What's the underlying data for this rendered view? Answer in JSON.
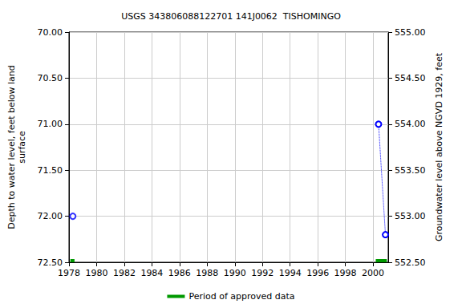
{
  "chart_data": {
    "type": "scatter",
    "title": "USGS 343806088122701 141J0062  TISHOMINGO",
    "ylabel": "Depth to water level, feet below land\nsurface",
    "y2label": "Groundwater level above NGVD 1929, feet",
    "xlim": [
      1978,
      2001.1
    ],
    "xticks": [
      1978,
      1980,
      1982,
      1984,
      1986,
      1988,
      1990,
      1992,
      1994,
      1996,
      1998,
      2000
    ],
    "ylim": [
      70,
      72.5
    ],
    "yticks": [
      {
        "value": 70,
        "label": "70.00"
      },
      {
        "value": 70.5,
        "label": "70.50"
      },
      {
        "value": 71,
        "label": "71.00"
      },
      {
        "value": 71.5,
        "label": "71.50"
      },
      {
        "value": 72,
        "label": "72.00"
      },
      {
        "value": 72.5,
        "label": "72.50"
      }
    ],
    "y2lim": [
      552.5,
      555
    ],
    "y2ticks": [
      {
        "value": 552.5,
        "label": "552.50"
      },
      {
        "value": 553,
        "label": "553.00"
      },
      {
        "value": 553.5,
        "label": "553.50"
      },
      {
        "value": 554,
        "label": "554.00"
      },
      {
        "value": 554.5,
        "label": "554.50"
      },
      {
        "value": 555,
        "label": "555.00"
      }
    ],
    "grid": true,
    "legend": "bottom",
    "series": [
      {
        "type": "scatter",
        "color": "#0000ff",
        "marker": "circle",
        "x": [
          1978.28
        ],
        "values": [
          72.0
        ]
      },
      {
        "type": "line",
        "color": "#0000ff",
        "marker": "circle",
        "line_style": "dotted",
        "x": [
          2000.4,
          2000.9
        ],
        "values": [
          71.0,
          72.2
        ]
      },
      {
        "type": "period",
        "name": "Period of approved data",
        "color": "#009900",
        "periods": [
          [
            1978.1,
            1978.4
          ],
          [
            2000.2,
            2001.0
          ]
        ]
      }
    ]
  }
}
